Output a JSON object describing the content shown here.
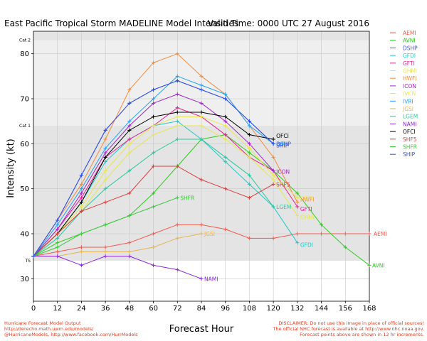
{
  "header": {
    "title": "East Pacific Tropical Storm MADELINE Model Intensities",
    "valid_time": "Valid Time: 0000 UTC 27 August 2016"
  },
  "footer": {
    "left_lines": [
      "Hurricane Forecast Model Output",
      "http://derecho.math.uwm.edu/models/",
      "@HurricaneModels, http://www.facebook.com/HurrModels"
    ],
    "right_lines": [
      "DISCLAIMER: Do not use this image in place of official sources!",
      "The official NHC forecast is available at http://www.nhc.noaa.gov.",
      "Forecast points above are shown in 12 hr increments."
    ],
    "color": "#e03c1e"
  },
  "chart_data": {
    "type": "line",
    "xlabel": "Forecast Hour",
    "ylabel": "Intensity (kt)",
    "xlim": [
      0,
      168
    ],
    "ylim": [
      25,
      85
    ],
    "x_ticks": [
      0,
      12,
      24,
      36,
      48,
      60,
      72,
      84,
      96,
      108,
      120,
      132,
      144,
      156,
      168
    ],
    "y_ticks": [
      30,
      40,
      50,
      60,
      70,
      80
    ],
    "category_bands": [
      {
        "label": "TS",
        "from": 34,
        "to": 64,
        "color": "#e4e4e4"
      },
      {
        "label": "Cat 1",
        "from": 64,
        "to": 83,
        "color": "#efefef"
      },
      {
        "label": "Cat 2",
        "from": 83,
        "to": 85,
        "color": "#e4e4e4"
      }
    ],
    "grid": true,
    "legend": "right",
    "series": [
      {
        "name": "AEMI",
        "color": "#f05a50",
        "x": [
          0,
          12,
          24,
          36,
          48,
          60,
          72,
          84,
          96,
          108,
          120,
          132,
          144,
          156,
          168
        ],
        "values": [
          35,
          36,
          37,
          37,
          38,
          40,
          42,
          42,
          41,
          39,
          39,
          40,
          40,
          40,
          40
        ],
        "end_label": "AEMI"
      },
      {
        "name": "AVNI",
        "color": "#2ecc1e",
        "x": [
          0,
          12,
          24,
          36,
          48,
          60,
          72,
          84,
          96,
          108,
          120,
          132,
          144,
          156,
          168
        ],
        "values": [
          35,
          38,
          40,
          42,
          44,
          49,
          55,
          61,
          62,
          58,
          54,
          49,
          42,
          37,
          33
        ],
        "end_label": "AVNI"
      },
      {
        "name": "DSHP",
        "color": "#3a50e6",
        "x": [
          0,
          12,
          24,
          36,
          48,
          60,
          72,
          84,
          96,
          108,
          120
        ],
        "values": [
          35,
          43,
          53,
          63,
          69,
          72,
          74,
          72,
          70,
          65,
          60
        ],
        "end_label": "DSHP"
      },
      {
        "name": "GFDI",
        "color": "#20c8c8",
        "x": [
          0,
          12,
          24,
          36,
          48,
          60,
          72,
          84,
          96,
          108,
          120,
          132
        ],
        "values": [
          35,
          40,
          47,
          56,
          61,
          64,
          65,
          61,
          56,
          51,
          46,
          38
        ],
        "end_label": "GFDI"
      },
      {
        "name": "GFTI",
        "color": "#e62090",
        "x": [
          0,
          12,
          24,
          36,
          48,
          60,
          72,
          84,
          96,
          108,
          120,
          132
        ],
        "values": [
          35,
          41,
          48,
          57,
          61,
          64,
          68,
          66,
          62,
          57,
          54,
          46
        ],
        "end_label": "GFTI"
      },
      {
        "name": "GHMI",
        "color": "#e6e650",
        "x": [
          0,
          12,
          24,
          36,
          48,
          60,
          72,
          84,
          96,
          108,
          120,
          132
        ],
        "values": [
          35,
          40,
          45,
          52,
          58,
          62,
          64,
          64,
          61,
          57,
          52,
          44
        ],
        "end_label": "GHMI"
      },
      {
        "name": "HWFI",
        "color": "#f08c3c",
        "x": [
          0,
          12,
          24,
          36,
          48,
          60,
          72,
          84,
          96,
          108,
          120,
          132
        ],
        "values": [
          35,
          43,
          51,
          61,
          72,
          78,
          80,
          75,
          71,
          64,
          57,
          47
        ],
        "end_label": "HWFI"
      },
      {
        "name": "ICON",
        "color": "#a028c8",
        "x": [
          0,
          12,
          24,
          36,
          48,
          60,
          72,
          84,
          96,
          108,
          120
        ],
        "values": [
          35,
          41,
          49,
          58,
          64,
          69,
          71,
          69,
          65,
          60,
          54
        ],
        "end_label": "ICON"
      },
      {
        "name": "IVCN",
        "color": "#e6e650",
        "x": [
          0,
          12,
          24,
          36,
          48,
          60,
          72,
          84,
          96,
          108,
          120,
          132
        ],
        "values": [
          35,
          40,
          46,
          54,
          60,
          64,
          66,
          66,
          64,
          59,
          53,
          48
        ],
        "end_label": "IVCN"
      },
      {
        "name": "IVRI",
        "color": "#28a0f0",
        "x": [
          0,
          12,
          24,
          36,
          48,
          60,
          72,
          84,
          96,
          108,
          120
        ],
        "values": [
          35,
          42,
          50,
          59,
          65,
          70,
          75,
          73,
          71,
          64,
          60
        ],
        "end_label": "IVRI"
      },
      {
        "name": "JGSI",
        "color": "#e6b450",
        "x": [
          0,
          12,
          24,
          36,
          48,
          60,
          72,
          84
        ],
        "values": [
          35,
          35,
          36,
          36,
          36,
          37,
          39,
          40
        ],
        "end_label": "JGSI"
      },
      {
        "name": "LGEM",
        "color": "#28c8a0",
        "x": [
          0,
          12,
          24,
          36,
          48,
          60,
          72,
          84,
          96,
          108,
          120
        ],
        "values": [
          35,
          39,
          45,
          50,
          54,
          58,
          61,
          61,
          57,
          53,
          46
        ],
        "end_label": "LGEM"
      },
      {
        "name": "NAMI",
        "color": "#8c28dc",
        "x": [
          0,
          12,
          24,
          36,
          48,
          60,
          72,
          84
        ],
        "values": [
          35,
          35,
          33,
          35,
          35,
          33,
          32,
          30
        ],
        "end_label": "NAMI"
      },
      {
        "name": "OFCI",
        "color": "#000000",
        "x": [
          0,
          12,
          24,
          36,
          48,
          60,
          72,
          84,
          96,
          108,
          120
        ],
        "values": [
          35,
          40,
          47,
          57,
          63,
          66,
          67,
          67,
          66,
          62,
          61
        ],
        "end_label": "OFCI"
      },
      {
        "name": "SHF5",
        "color": "#dc3c3c",
        "x": [
          0,
          12,
          24,
          36,
          48,
          60,
          72,
          84,
          96,
          108,
          120
        ],
        "values": [
          35,
          40,
          45,
          47,
          49,
          55,
          55,
          52,
          50,
          48,
          51
        ],
        "end_label": "SHF5"
      },
      {
        "name": "SHFR",
        "color": "#3cc83c",
        "x": [
          0,
          12,
          24,
          36,
          48,
          60,
          72
        ],
        "values": [
          35,
          37,
          40,
          42,
          44,
          46,
          48
        ],
        "end_label": "SHFR"
      },
      {
        "name": "SHIP",
        "color": "#3250e6",
        "x": [
          0,
          12,
          24,
          36,
          48,
          60,
          72,
          84,
          96,
          108,
          120
        ],
        "values": [
          35,
          43,
          53,
          63,
          69,
          72,
          74,
          72,
          70,
          65,
          60
        ],
        "end_label": "SHIP"
      }
    ]
  }
}
